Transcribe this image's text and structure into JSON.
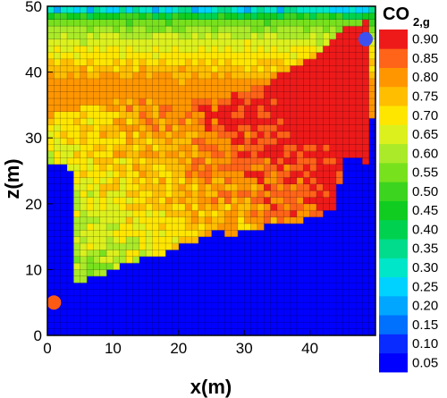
{
  "chart_data": {
    "type": "heatmap",
    "title": "",
    "xlabel": "x(m)",
    "ylabel": "z(m)",
    "xlim": [
      0,
      50
    ],
    "ylim": [
      0,
      50
    ],
    "x_ticks": [
      "0",
      "10",
      "20",
      "30",
      "40"
    ],
    "y_ticks": [
      "0",
      "10",
      "20",
      "30",
      "40",
      "50"
    ],
    "grid": true,
    "colorbar": {
      "title_main": "CO",
      "title_sub": "2,g",
      "placement": "right",
      "levels": [
        0.05,
        0.1,
        0.15,
        0.2,
        0.25,
        0.3,
        0.35,
        0.4,
        0.45,
        0.5,
        0.55,
        0.6,
        0.65,
        0.7,
        0.75,
        0.8,
        0.85,
        0.9
      ],
      "labels": [
        "0.05",
        "0.10",
        "0.15",
        "0.20",
        "0.25",
        "0.30",
        "0.35",
        "0.40",
        "0.45",
        "0.50",
        "0.55",
        "0.60",
        "0.65",
        "0.70",
        "0.75",
        "0.80",
        "0.85",
        "0.90"
      ],
      "colors": [
        "#0000ff",
        "#0a2bff",
        "#0070ff",
        "#00a6ff",
        "#00d2ff",
        "#00e6c8",
        "#00dc8c",
        "#00d250",
        "#10cc20",
        "#3cd41e",
        "#78e11e",
        "#aaea28",
        "#dcf01e",
        "#ffe600",
        "#ffbe00",
        "#ff9600",
        "#ff6418",
        "#ee1a1a"
      ]
    },
    "markers": [
      {
        "x": 1,
        "z": 5,
        "color": "#ff5a14"
      },
      {
        "x": 48.5,
        "z": 45,
        "color": "#3c50f0"
      }
    ],
    "regions_note_free": true,
    "plume_boundary": [
      [
        0,
        26
      ],
      [
        3.2,
        26
      ],
      [
        4,
        24
      ],
      [
        4,
        8
      ],
      [
        6,
        8
      ],
      [
        7,
        9
      ],
      [
        9,
        9
      ],
      [
        10,
        10
      ],
      [
        12,
        11
      ],
      [
        14,
        11
      ],
      [
        15,
        12
      ],
      [
        17,
        12
      ],
      [
        19,
        13
      ],
      [
        22,
        14
      ],
      [
        24,
        15
      ],
      [
        26,
        16
      ],
      [
        28,
        15
      ],
      [
        30,
        16
      ],
      [
        32,
        16
      ],
      [
        35,
        17
      ],
      [
        38,
        17
      ],
      [
        41,
        18
      ],
      [
        44,
        19
      ],
      [
        45,
        27
      ],
      [
        47,
        27
      ],
      [
        49.5,
        26
      ],
      [
        49.5,
        48
      ],
      [
        46,
        47
      ],
      [
        44,
        45
      ],
      [
        42,
        43
      ],
      [
        38,
        41
      ],
      [
        33,
        38
      ],
      [
        27,
        36
      ],
      [
        21,
        36
      ],
      [
        14,
        36
      ],
      [
        7,
        35
      ],
      [
        3,
        34
      ],
      [
        0,
        33
      ]
    ]
  }
}
